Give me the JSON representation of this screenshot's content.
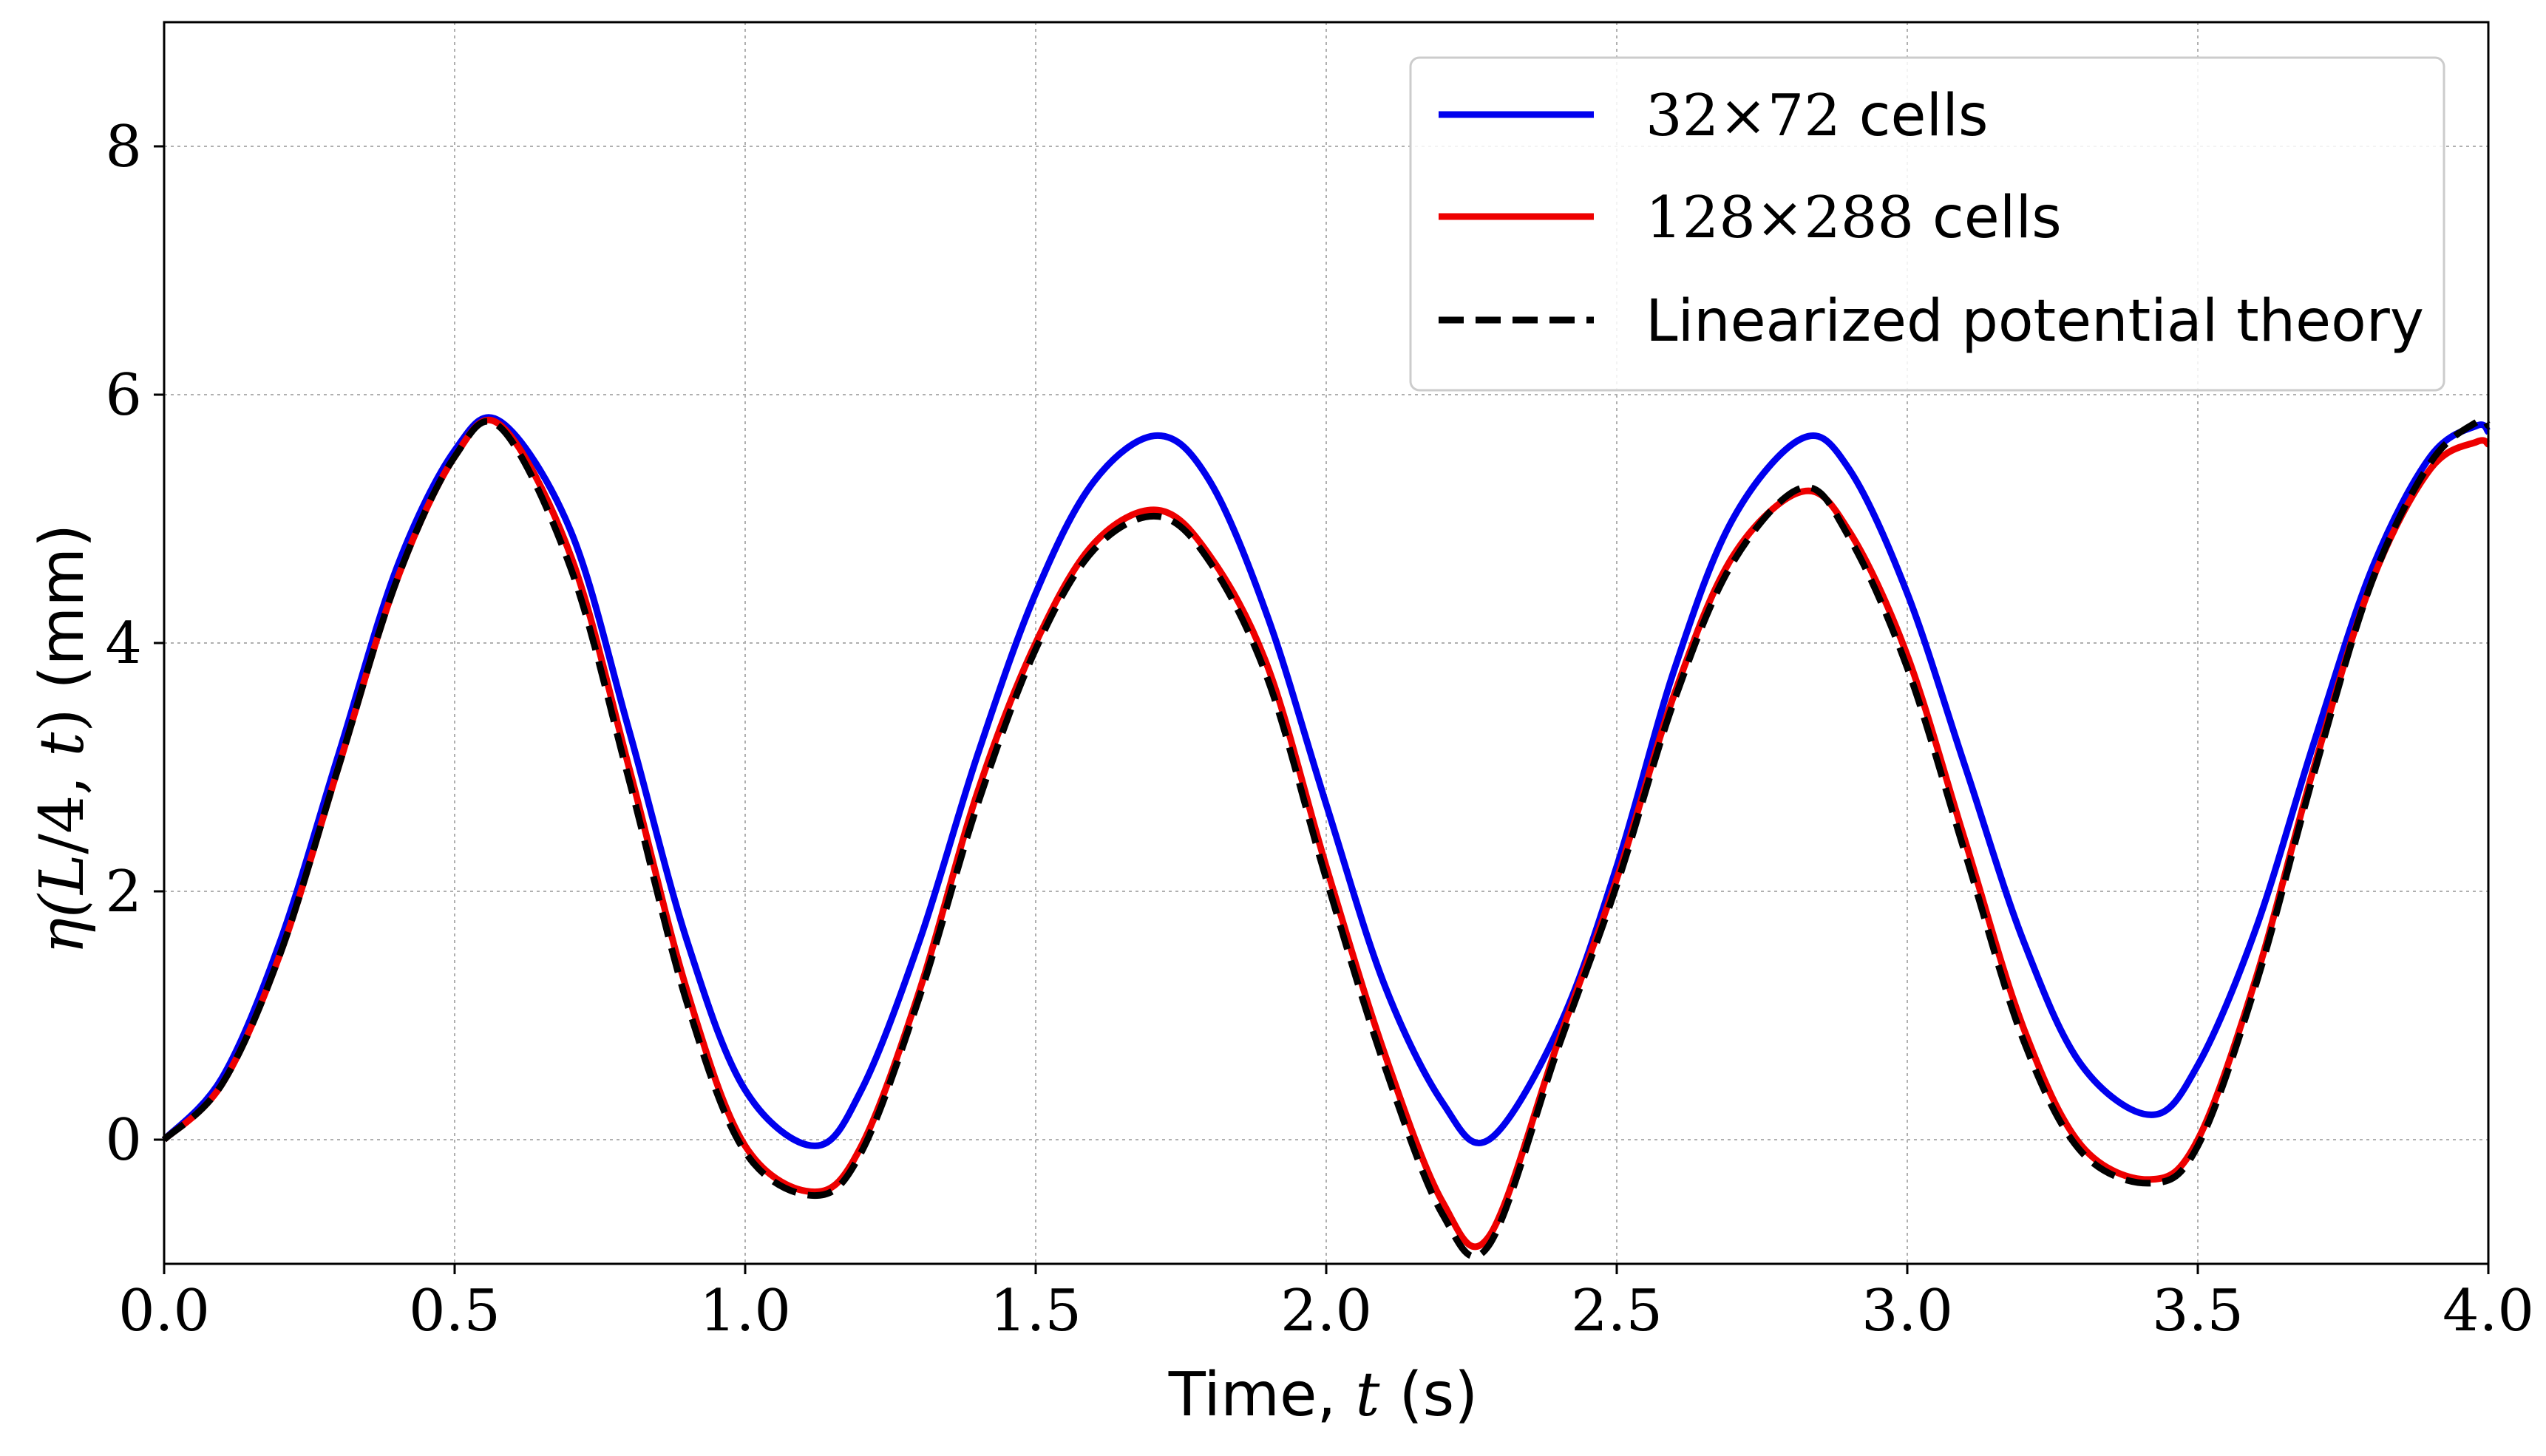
{
  "chart_data": {
    "type": "line",
    "title": "",
    "xlabel": {
      "prefix": "Time, ",
      "var": "t",
      "suffix": " (s)"
    },
    "ylabel": {
      "prefix": "η(",
      "var1": "L",
      "mid": "/4, ",
      "var2": "t",
      "close": ")",
      "suffix": " (mm)"
    },
    "xlim": [
      0.0,
      4.0
    ],
    "ylim": [
      -1.0,
      9.0
    ],
    "xticks": [
      0.0,
      0.5,
      1.0,
      1.5,
      2.0,
      2.5,
      3.0,
      3.5,
      4.0
    ],
    "xtick_labels": [
      "0.0",
      "0.5",
      "1.0",
      "1.5",
      "2.0",
      "2.5",
      "3.0",
      "3.5",
      "4.0"
    ],
    "yticks": [
      0,
      2,
      4,
      6,
      8
    ],
    "ytick_labels": [
      "0",
      "2",
      "4",
      "6",
      "8"
    ],
    "grid": true,
    "legend_position": "top-right",
    "x": [
      0.0,
      0.1,
      0.2,
      0.3,
      0.4,
      0.5,
      0.58,
      0.7,
      0.8,
      0.9,
      1.0,
      1.12,
      1.2,
      1.3,
      1.4,
      1.5,
      1.6,
      1.71,
      1.8,
      1.9,
      2.0,
      2.1,
      2.2,
      2.28,
      2.4,
      2.5,
      2.6,
      2.7,
      2.82,
      2.9,
      3.0,
      3.1,
      3.2,
      3.3,
      3.42,
      3.5,
      3.6,
      3.7,
      3.8,
      3.9,
      3.98,
      4.0
    ],
    "series": [
      {
        "name": "32×72 cells",
        "name_num": "32×72",
        "name_word": " cells",
        "color": "#0000ee",
        "dash": "solid",
        "values": [
          0.0,
          0.5,
          1.6,
          3.1,
          4.6,
          5.55,
          5.78,
          4.9,
          3.3,
          1.6,
          0.4,
          -0.05,
          0.4,
          1.6,
          3.1,
          4.4,
          5.3,
          5.67,
          5.3,
          4.2,
          2.7,
          1.25,
          0.3,
          0.0,
          0.9,
          2.2,
          3.8,
          5.0,
          5.65,
          5.4,
          4.4,
          3.0,
          1.6,
          0.6,
          0.2,
          0.6,
          1.7,
          3.2,
          4.6,
          5.5,
          5.75,
          5.7
        ]
      },
      {
        "name": "128×288 cells",
        "name_num": "128×288",
        "name_word": " cells",
        "color": "#ee0000",
        "dash": "solid",
        "values": [
          0.0,
          0.45,
          1.5,
          3.0,
          4.5,
          5.5,
          5.75,
          4.7,
          3.0,
          1.2,
          -0.05,
          -0.42,
          -0.05,
          1.2,
          2.8,
          4.0,
          4.8,
          5.07,
          4.7,
          3.8,
          2.2,
          0.7,
          -0.5,
          -0.78,
          0.8,
          2.1,
          3.6,
          4.7,
          5.22,
          4.9,
          3.9,
          2.4,
          0.9,
          -0.05,
          -0.32,
          0.0,
          1.3,
          3.0,
          4.5,
          5.4,
          5.62,
          5.6
        ]
      },
      {
        "name": "Linearized potential theory",
        "color": "#000000",
        "dash": "dashed",
        "values": [
          0.0,
          0.45,
          1.5,
          3.0,
          4.5,
          5.5,
          5.73,
          4.6,
          2.9,
          1.1,
          -0.1,
          -0.45,
          -0.1,
          1.15,
          2.7,
          3.95,
          4.75,
          5.02,
          4.65,
          3.7,
          2.1,
          0.6,
          -0.6,
          -0.85,
          0.75,
          2.05,
          3.55,
          4.65,
          5.25,
          4.85,
          3.8,
          2.3,
          0.8,
          -0.1,
          -0.35,
          -0.05,
          1.25,
          2.95,
          4.5,
          5.45,
          5.78,
          5.75
        ]
      }
    ]
  }
}
